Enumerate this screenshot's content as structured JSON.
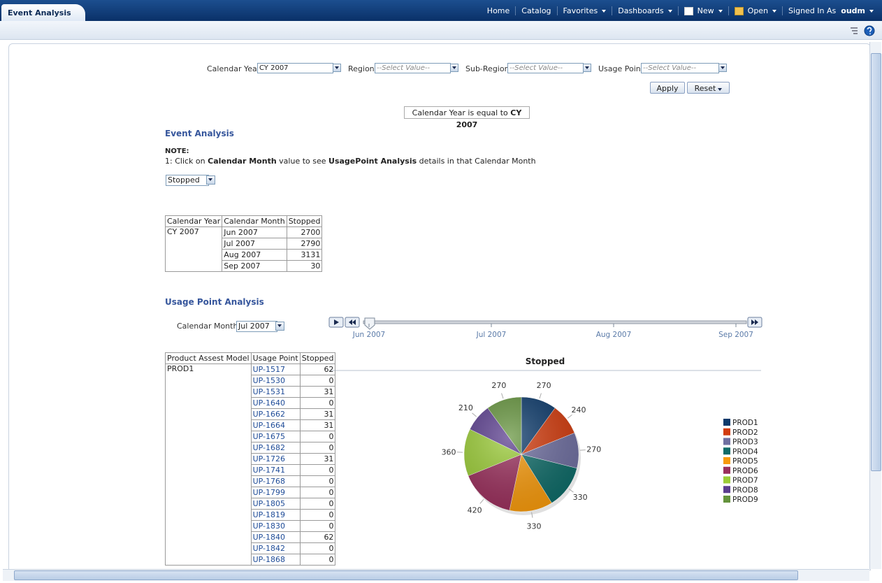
{
  "header": {
    "tab": "Event Analysis",
    "nav": [
      "Home",
      "Catalog",
      "Favorites",
      "Dashboards",
      "New",
      "Open"
    ],
    "signed_in_label": "Signed In As",
    "user": "oudm"
  },
  "filters": {
    "items": [
      {
        "label": "Calendar Year",
        "value": "CY 2007"
      },
      {
        "label": "Region",
        "value": "--Select Value--"
      },
      {
        "label": "Sub-Region",
        "value": "--Select Value--"
      },
      {
        "label": "Usage Point",
        "value": "--Select Value--"
      }
    ],
    "apply": "Apply",
    "reset": "Reset"
  },
  "filter_summary": {
    "text": "Calendar Year is equal to",
    "value": "CY 2007"
  },
  "event_analysis": {
    "title": "Event Analysis",
    "note_label": "NOTE:",
    "note": [
      "1: Click on",
      "Calendar Month",
      "value to see",
      "UsagePoint Analysis",
      "details in that Calendar Month"
    ],
    "measure": "Stopped",
    "table": {
      "headers": [
        "Calendar Year",
        "Calendar Month",
        "Stopped"
      ],
      "year": "CY 2007",
      "rows": [
        [
          "Jun 2007",
          "2700"
        ],
        [
          "Jul 2007",
          "2790"
        ],
        [
          "Aug 2007",
          "3131"
        ],
        [
          "Sep 2007",
          "30"
        ]
      ]
    }
  },
  "usage_point_analysis": {
    "title": "Usage Point Analysis",
    "month_label": "Calendar Month",
    "month_value": "Jul 2007",
    "slider": [
      "Jun 2007",
      "Jul 2007",
      "Aug 2007",
      "Sep 2007"
    ],
    "table": {
      "headers": [
        "Product Assest Model",
        "Usage Point",
        "Stopped"
      ],
      "model": "PROD1",
      "rows": [
        [
          "UP-1517",
          "62"
        ],
        [
          "UP-1530",
          "0"
        ],
        [
          "UP-1531",
          "31"
        ],
        [
          "UP-1640",
          "0"
        ],
        [
          "UP-1662",
          "31"
        ],
        [
          "UP-1664",
          "31"
        ],
        [
          "UP-1675",
          "0"
        ],
        [
          "UP-1682",
          "0"
        ],
        [
          "UP-1726",
          "31"
        ],
        [
          "UP-1741",
          "0"
        ],
        [
          "UP-1768",
          "0"
        ],
        [
          "UP-1799",
          "0"
        ],
        [
          "UP-1805",
          "0"
        ],
        [
          "UP-1819",
          "0"
        ],
        [
          "UP-1830",
          "0"
        ],
        [
          "UP-1840",
          "62"
        ],
        [
          "UP-1842",
          "0"
        ],
        [
          "UP-1868",
          "0"
        ]
      ]
    }
  },
  "chart_data": {
    "type": "pie",
    "title": "Stopped",
    "categories": [
      "PROD1",
      "PROD2",
      "PROD3",
      "PROD4",
      "PROD5",
      "PROD6",
      "PROD7",
      "PROD8",
      "PROD9"
    ],
    "values": [
      270,
      240,
      270,
      330,
      330,
      420,
      360,
      210,
      270
    ],
    "colors": [
      "#0c3a6b",
      "#d23c0e",
      "#6f6fa0",
      "#0f6b68",
      "#f79a0c",
      "#9a2f5c",
      "#9bcc37",
      "#5a3d8e",
      "#64933c"
    ],
    "legend": "right"
  }
}
